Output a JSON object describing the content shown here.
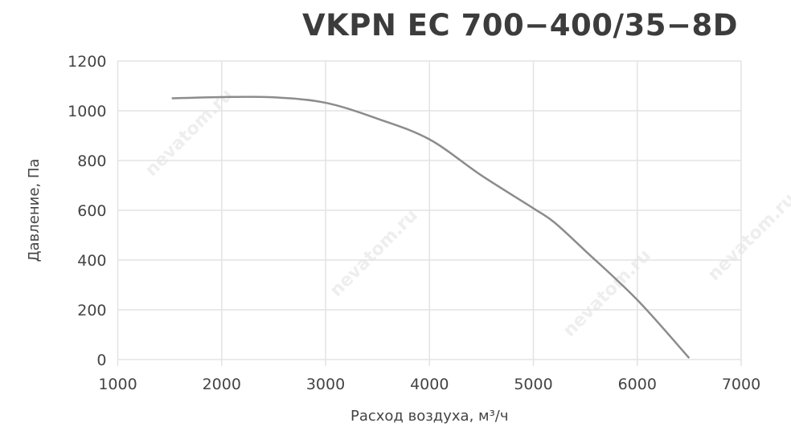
{
  "chart_data": {
    "type": "line",
    "title": "VKPN EC 700−400/35−8D",
    "xlabel": "Расход воздуха, м³/ч",
    "ylabel": "Давление, Па",
    "xlim": [
      1000,
      7000
    ],
    "ylim": [
      0,
      1200
    ],
    "xticks": [
      1000,
      2000,
      3000,
      4000,
      5000,
      6000,
      7000
    ],
    "yticks": [
      0,
      200,
      400,
      600,
      800,
      1000,
      1200
    ],
    "grid": true,
    "series": [
      {
        "color": "#8c8c8c",
        "x": [
          1520,
          2000,
          2500,
          3000,
          3500,
          4000,
          4500,
          5000,
          5200,
          5500,
          6000,
          6500
        ],
        "y": [
          1050,
          1055,
          1054,
          1032,
          968,
          885,
          740,
          608,
          552,
          437,
          240,
          6
        ]
      }
    ],
    "watermark": "nevatom.ru"
  }
}
